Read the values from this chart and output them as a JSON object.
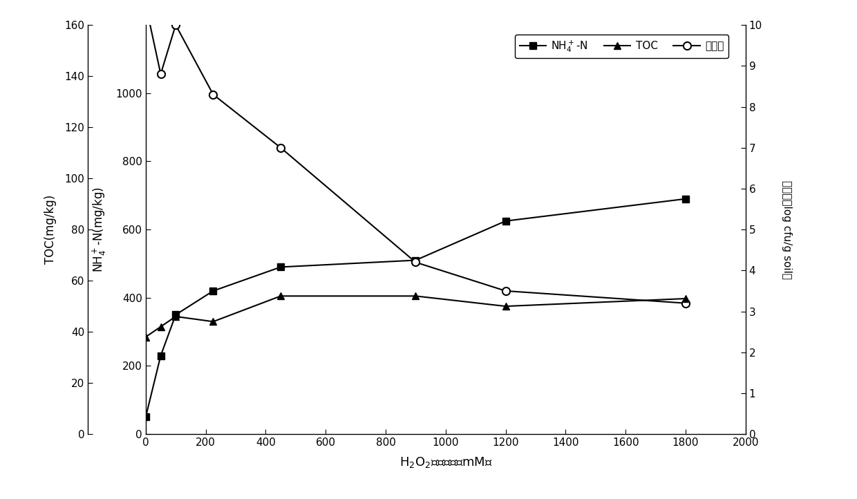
{
  "x": [
    0,
    50,
    100,
    225,
    450,
    900,
    1200,
    1800
  ],
  "nh4_n": [
    50,
    230,
    350,
    420,
    490,
    510,
    625,
    690
  ],
  "toc": [
    38,
    42,
    46,
    44,
    54,
    54,
    50,
    53
  ],
  "bacteria": [
    10.5,
    8.8,
    10.0,
    8.3,
    7.0,
    4.2,
    3.5,
    3.2
  ],
  "xlabel": "H$_2$O$_2$投加浓度（mM）",
  "ylabel_toc": "TOC(mg/kg)",
  "ylabel_nh4": "NH$_4^+$-N(mg/kg)",
  "ylabel_right": "细菌数（log cfu/g soil）",
  "legend_nh4": "NH$_4^+$-N",
  "legend_toc": "TOC",
  "legend_bact": "细菌数",
  "xlim": [
    0,
    2000
  ],
  "ylim_toc": [
    0,
    160
  ],
  "ylim_nh4": [
    0,
    1200
  ],
  "ylim_right": [
    0,
    10
  ],
  "xticks": [
    0,
    200,
    400,
    600,
    800,
    1000,
    1200,
    1400,
    1600,
    1800,
    2000
  ],
  "yticks_toc": [
    0,
    20,
    40,
    60,
    80,
    100,
    120,
    140,
    160
  ],
  "yticks_nh4": [
    0,
    200,
    400,
    600,
    800,
    1000
  ],
  "yticks_right": [
    0,
    1,
    2,
    3,
    4,
    5,
    6,
    7,
    8,
    9,
    10
  ],
  "line_color": "#000000",
  "bg_color": "#ffffff"
}
